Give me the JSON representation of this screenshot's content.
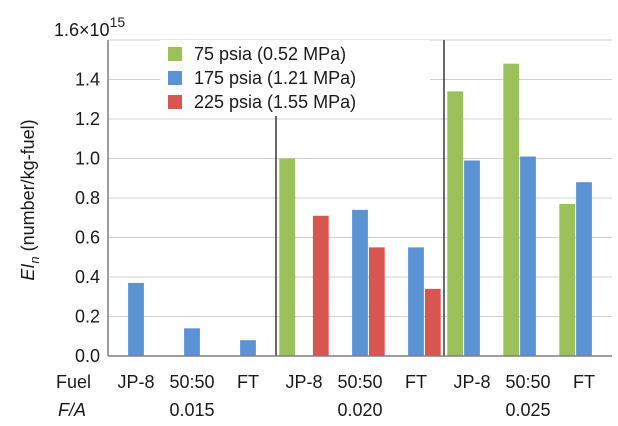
{
  "chart_data": {
    "type": "bar",
    "y_top_label": "1.6×10",
    "y_top_exponent": "15",
    "ylabel_main": "EI",
    "ylabel_sub": "n",
    "ylabel_rest": " (number/kg-fuel)",
    "ylim": [
      0,
      1.6
    ],
    "yticks": [
      "0.0",
      "0.2",
      "0.4",
      "0.6",
      "0.8",
      "1.0",
      "1.2",
      "1.4"
    ],
    "grid": true,
    "legend_position": "top-center",
    "row_label_fuel": "Fuel",
    "row_label_fa": "F/A",
    "groups": [
      {
        "fa": "0.015",
        "fuels": [
          "JP-8",
          "50:50",
          "FT"
        ],
        "series_values": [
          [
            null,
            null,
            null
          ],
          [
            0.37,
            0.14,
            0.08
          ],
          [
            null,
            null,
            null
          ]
        ]
      },
      {
        "fa": "0.020",
        "fuels": [
          "JP-8",
          "50:50",
          "FT"
        ],
        "series_values": [
          [
            1.0,
            null,
            null
          ],
          [
            null,
            0.74,
            0.55
          ],
          [
            0.71,
            0.55,
            0.34
          ]
        ]
      },
      {
        "fa": "0.025",
        "fuels": [
          "JP-8",
          "50:50",
          "FT"
        ],
        "series_values": [
          [
            1.34,
            1.48,
            0.77
          ],
          [
            0.99,
            1.01,
            0.88
          ],
          [
            null,
            null,
            null
          ]
        ]
      }
    ],
    "series": [
      {
        "name": "75 psia (0.52 MPa)",
        "color": "#9dc15a"
      },
      {
        "name": "175 psia (1.21 MPa)",
        "color": "#5b92d4"
      },
      {
        "name": "225 psia (1.55 MPa)",
        "color": "#d95550"
      }
    ]
  }
}
